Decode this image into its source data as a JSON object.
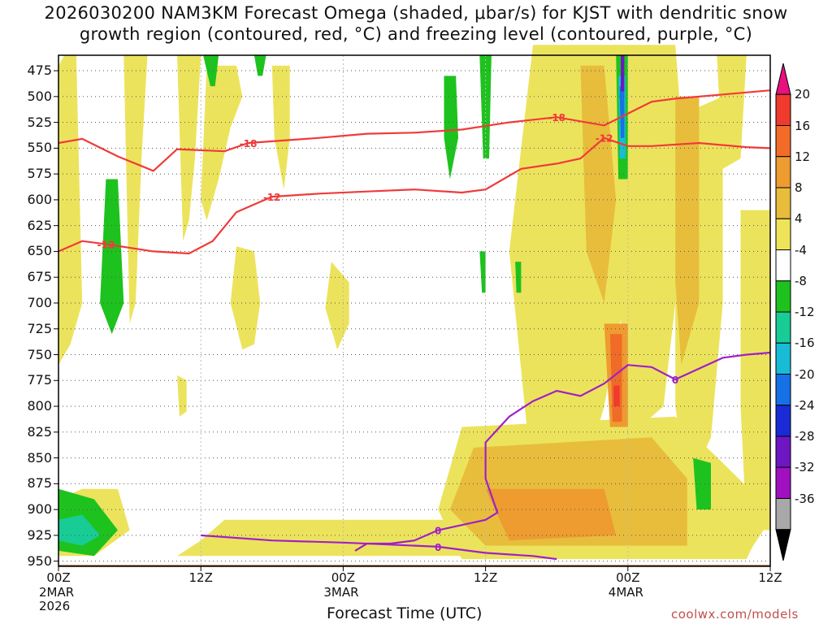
{
  "title": {
    "line1": "2026030200 NAM3KM Forecast Omega (shaded, μbar/s) for KJST with dendritic snow",
    "line2": "growth region (contoured, red, °C) and freezing level (contoured, purple, °C)"
  },
  "xlabel": "Forecast Time (UTC)",
  "credit": "coolwx.com/models",
  "x_ticks": [
    {
      "label": "00Z",
      "sub": [
        "2MAR",
        "2026"
      ]
    },
    {
      "label": "12Z",
      "sub": []
    },
    {
      "label": "00Z",
      "sub": [
        "3MAR"
      ]
    },
    {
      "label": "12Z",
      "sub": []
    },
    {
      "label": "00Z",
      "sub": [
        "4MAR"
      ]
    },
    {
      "label": "12Z",
      "sub": []
    }
  ],
  "y_ticks": [
    "475",
    "500",
    "525",
    "550",
    "575",
    "600",
    "625",
    "650",
    "675",
    "700",
    "725",
    "750",
    "775",
    "800",
    "825",
    "850",
    "875",
    "900",
    "925",
    "950"
  ],
  "colorbar": {
    "labels": [
      "20",
      "16",
      "12",
      "8",
      "4",
      "-4",
      "-8",
      "-12",
      "-16",
      "-20",
      "-24",
      "-28",
      "-32",
      "-36"
    ],
    "colors": [
      "#e8107f",
      "#f03a2e",
      "#f26c28",
      "#ee9b30",
      "#e8bd3c",
      "#efe35a",
      "#ffffff",
      "#1ec21e",
      "#18cc96",
      "#18bcd6",
      "#1670e6",
      "#1a2ad6",
      "#6e16c4",
      "#a010c0",
      "#a8a8a8",
      "#000000"
    ]
  },
  "chart_data": {
    "type": "heatmap",
    "xlabel": "Forecast Time (UTC)",
    "ylabel": "",
    "y_range_hPa": [
      950,
      460
    ],
    "y_scale": "pressure (linear)",
    "x_range_hours": [
      0,
      60
    ],
    "grid": "dotted",
    "contours": [
      {
        "name": "-18",
        "color": "#f03a3a",
        "points": [
          [
            0,
            545
          ],
          [
            2,
            541
          ],
          [
            5,
            558
          ],
          [
            8,
            572
          ],
          [
            10,
            551
          ],
          [
            14,
            553
          ],
          [
            16,
            545
          ],
          [
            22,
            540
          ],
          [
            26,
            536
          ],
          [
            30,
            535
          ],
          [
            34,
            532
          ],
          [
            38,
            525
          ],
          [
            42,
            520
          ],
          [
            46,
            528
          ],
          [
            50,
            505
          ],
          [
            52,
            502
          ],
          [
            56,
            498
          ],
          [
            60,
            494
          ]
        ]
      },
      {
        "name": "-12",
        "color": "#f03a3a",
        "points": [
          [
            0,
            650
          ],
          [
            2,
            640
          ],
          [
            4,
            643
          ],
          [
            8,
            650
          ],
          [
            11,
            652
          ],
          [
            13,
            640
          ],
          [
            15,
            612
          ],
          [
            18,
            597
          ],
          [
            22,
            594
          ],
          [
            26,
            592
          ],
          [
            30,
            590
          ],
          [
            34,
            593
          ],
          [
            36,
            590
          ],
          [
            39,
            570
          ],
          [
            42,
            565
          ],
          [
            44,
            560
          ],
          [
            46,
            540
          ],
          [
            48,
            548
          ],
          [
            50,
            548
          ],
          [
            54,
            545
          ],
          [
            58,
            549
          ],
          [
            60,
            550
          ]
        ]
      },
      {
        "name": "0",
        "color": "#a020c8",
        "points": [
          [
            25,
            940
          ],
          [
            26,
            933
          ],
          [
            28,
            933
          ],
          [
            30,
            930
          ],
          [
            32,
            920
          ],
          [
            34,
            915
          ],
          [
            36,
            910
          ],
          [
            37,
            903
          ],
          [
            36,
            870
          ],
          [
            36,
            835
          ],
          [
            38,
            810
          ],
          [
            40,
            795
          ],
          [
            42,
            785
          ],
          [
            44,
            790
          ],
          [
            46,
            778
          ],
          [
            48,
            760
          ],
          [
            50,
            762
          ],
          [
            52,
            774
          ],
          [
            56,
            753
          ],
          [
            58,
            750
          ],
          [
            60,
            748
          ]
        ]
      },
      {
        "name": "0",
        "color": "#a020c8",
        "points": [
          [
            12,
            925
          ],
          [
            18,
            930
          ],
          [
            24,
            932
          ],
          [
            28,
            934
          ],
          [
            32,
            936
          ],
          [
            36,
            942
          ],
          [
            40,
            945
          ],
          [
            42,
            948
          ]
        ]
      }
    ],
    "omega_shading_levels": [
      -36,
      -32,
      -28,
      -24,
      -20,
      -16,
      -12,
      -8,
      -4,
      4,
      8,
      12,
      16,
      20
    ],
    "omega_regions": [
      {
        "value": 4,
        "points": [
          [
            0.5,
            460
          ],
          [
            1.5,
            460
          ],
          [
            2,
            700
          ],
          [
            1,
            740
          ],
          [
            0,
            760
          ],
          [
            0,
            470
          ]
        ]
      },
      {
        "value": 4,
        "points": [
          [
            5.5,
            460
          ],
          [
            7.5,
            460
          ],
          [
            7,
            560
          ],
          [
            6.5,
            700
          ],
          [
            6,
            720
          ]
        ]
      },
      {
        "value": 4,
        "points": [
          [
            10,
            460
          ],
          [
            12,
            460
          ],
          [
            11.5,
            560
          ],
          [
            11,
            620
          ],
          [
            10.5,
            640
          ]
        ]
      },
      {
        "value": 4,
        "points": [
          [
            12.5,
            470
          ],
          [
            15,
            470
          ],
          [
            15.5,
            500
          ],
          [
            14.5,
            530
          ],
          [
            13.5,
            580
          ],
          [
            12.5,
            620
          ],
          [
            12,
            600
          ]
        ]
      },
      {
        "value": 4,
        "points": [
          [
            15,
            645
          ],
          [
            16.5,
            650
          ],
          [
            17,
            700
          ],
          [
            16.5,
            740
          ],
          [
            15.5,
            745
          ],
          [
            14.5,
            700
          ]
        ]
      },
      {
        "value": 4,
        "points": [
          [
            2,
            880
          ],
          [
            5,
            880
          ],
          [
            6,
            920
          ],
          [
            3,
            945
          ],
          [
            0,
            945
          ],
          [
            0,
            890
          ]
        ]
      },
      {
        "value": 4,
        "points": [
          [
            18,
            470
          ],
          [
            19.5,
            470
          ],
          [
            19.5,
            540
          ],
          [
            19,
            590
          ],
          [
            18.2,
            540
          ]
        ]
      },
      {
        "value": 4,
        "points": [
          [
            23,
            660
          ],
          [
            24.5,
            680
          ],
          [
            24.5,
            720
          ],
          [
            23.5,
            745
          ],
          [
            22.5,
            705
          ]
        ]
      },
      {
        "value": 4,
        "points": [
          [
            10,
            770
          ],
          [
            10.8,
            775
          ],
          [
            10.8,
            805
          ],
          [
            10.2,
            810
          ]
        ]
      },
      {
        "value": 4,
        "points": [
          [
            14,
            910
          ],
          [
            60,
            910
          ],
          [
            58,
            945
          ],
          [
            10,
            945
          ],
          [
            12,
            930
          ]
        ]
      },
      {
        "value": 4,
        "points": [
          [
            34,
            820
          ],
          [
            52,
            810
          ],
          [
            60,
            900
          ],
          [
            58,
            948
          ],
          [
            34,
            948
          ],
          [
            32,
            900
          ]
        ]
      },
      {
        "value": 4,
        "points": [
          [
            40,
            450
          ],
          [
            46,
            450
          ],
          [
            49,
            620
          ],
          [
            46,
            800
          ],
          [
            44,
            880
          ],
          [
            40,
            880
          ],
          [
            38,
            650
          ]
        ]
      },
      {
        "value": 4,
        "points": [
          [
            46,
            450
          ],
          [
            50,
            450
          ],
          [
            52,
            700
          ],
          [
            51,
            800
          ],
          [
            48,
            830
          ]
        ]
      },
      {
        "value": 4,
        "points": [
          [
            50,
            450
          ],
          [
            52,
            450
          ],
          [
            53,
            600
          ],
          [
            52,
            700
          ],
          [
            50.5,
            690
          ]
        ]
      },
      {
        "value": 4,
        "points": [
          [
            52,
            520
          ],
          [
            56,
            500
          ],
          [
            56,
            700
          ],
          [
            55,
            830
          ],
          [
            53,
            880
          ],
          [
            52,
            800
          ]
        ]
      },
      {
        "value": 4,
        "points": [
          [
            55.5,
            460
          ],
          [
            58,
            460
          ],
          [
            57.5,
            560
          ],
          [
            56,
            570
          ]
        ]
      },
      {
        "value": 4,
        "points": [
          [
            57.5,
            610
          ],
          [
            60,
            610
          ],
          [
            60,
            920
          ],
          [
            58,
            920
          ],
          [
            57.5,
            800
          ]
        ]
      },
      {
        "value": 8,
        "points": [
          [
            35,
            840
          ],
          [
            50,
            830
          ],
          [
            53,
            870
          ],
          [
            53,
            935
          ],
          [
            36,
            935
          ],
          [
            33,
            900
          ]
        ]
      },
      {
        "value": 8,
        "points": [
          [
            44,
            470
          ],
          [
            46,
            470
          ],
          [
            47,
            600
          ],
          [
            46,
            700
          ],
          [
            44.5,
            650
          ]
        ]
      },
      {
        "value": 8,
        "points": [
          [
            52,
            500
          ],
          [
            54,
            500
          ],
          [
            54,
            700
          ],
          [
            52.5,
            760
          ],
          [
            52,
            680
          ]
        ]
      },
      {
        "value": 12,
        "points": [
          [
            36,
            880
          ],
          [
            46,
            880
          ],
          [
            47,
            925
          ],
          [
            38,
            930
          ]
        ]
      },
      {
        "value": 12,
        "points": [
          [
            46,
            720
          ],
          [
            48,
            720
          ],
          [
            48,
            820
          ],
          [
            46.5,
            820
          ]
        ]
      },
      {
        "value": 16,
        "points": [
          [
            46.5,
            730
          ],
          [
            47.5,
            730
          ],
          [
            47.5,
            815
          ],
          [
            46.7,
            815
          ]
        ]
      },
      {
        "value": 20,
        "points": [
          [
            46.8,
            780
          ],
          [
            47.3,
            780
          ],
          [
            47.3,
            800
          ],
          [
            46.8,
            800
          ]
        ]
      },
      {
        "value": -4,
        "points": [
          [
            4,
            580
          ],
          [
            5,
            580
          ],
          [
            5.5,
            700
          ],
          [
            4.5,
            730
          ],
          [
            3.5,
            700
          ]
        ]
      },
      {
        "value": -4,
        "points": [
          [
            0,
            880
          ],
          [
            3,
            890
          ],
          [
            5,
            920
          ],
          [
            3,
            945
          ],
          [
            0,
            940
          ]
        ]
      },
      {
        "value": -4,
        "points": [
          [
            12.2,
            460
          ],
          [
            13.5,
            460
          ],
          [
            13.2,
            490
          ],
          [
            12.8,
            490
          ]
        ]
      },
      {
        "value": -4,
        "points": [
          [
            16.5,
            460
          ],
          [
            17.5,
            460
          ],
          [
            17.2,
            480
          ],
          [
            16.8,
            480
          ]
        ]
      },
      {
        "value": -4,
        "points": [
          [
            32.5,
            480
          ],
          [
            33.5,
            480
          ],
          [
            33.7,
            540
          ],
          [
            33,
            580
          ],
          [
            32.5,
            540
          ]
        ]
      },
      {
        "value": -4,
        "points": [
          [
            35.5,
            460
          ],
          [
            36.5,
            460
          ],
          [
            36.3,
            560
          ],
          [
            35.8,
            560
          ]
        ]
      },
      {
        "value": -4,
        "points": [
          [
            47,
            460
          ],
          [
            48,
            460
          ],
          [
            48,
            580
          ],
          [
            47.2,
            580
          ]
        ]
      },
      {
        "value": -4,
        "points": [
          [
            53.5,
            850
          ],
          [
            55,
            855
          ],
          [
            55,
            900
          ],
          [
            53.8,
            900
          ]
        ]
      },
      {
        "value": -4,
        "points": [
          [
            35.5,
            650
          ],
          [
            36,
            650
          ],
          [
            36,
            690
          ],
          [
            35.7,
            690
          ]
        ]
      },
      {
        "value": -4,
        "points": [
          [
            38.5,
            660
          ],
          [
            39,
            660
          ],
          [
            39,
            690
          ],
          [
            38.6,
            690
          ]
        ]
      },
      {
        "value": -8,
        "points": [
          [
            0,
            910
          ],
          [
            2,
            905
          ],
          [
            3.5,
            925
          ],
          [
            2,
            935
          ],
          [
            0,
            930
          ]
        ]
      },
      {
        "value": -16,
        "points": [
          [
            47.2,
            480
          ],
          [
            47.8,
            480
          ],
          [
            47.8,
            560
          ],
          [
            47.3,
            560
          ]
        ]
      },
      {
        "value": -20,
        "points": [
          [
            47.3,
            490
          ],
          [
            47.7,
            490
          ],
          [
            47.7,
            540
          ],
          [
            47.4,
            540
          ]
        ]
      },
      {
        "value": -28,
        "points": [
          [
            47.4,
            460
          ],
          [
            47.7,
            460
          ],
          [
            47.7,
            495
          ],
          [
            47.4,
            495
          ]
        ]
      }
    ],
    "terrain_pressure_hPa": 960
  }
}
